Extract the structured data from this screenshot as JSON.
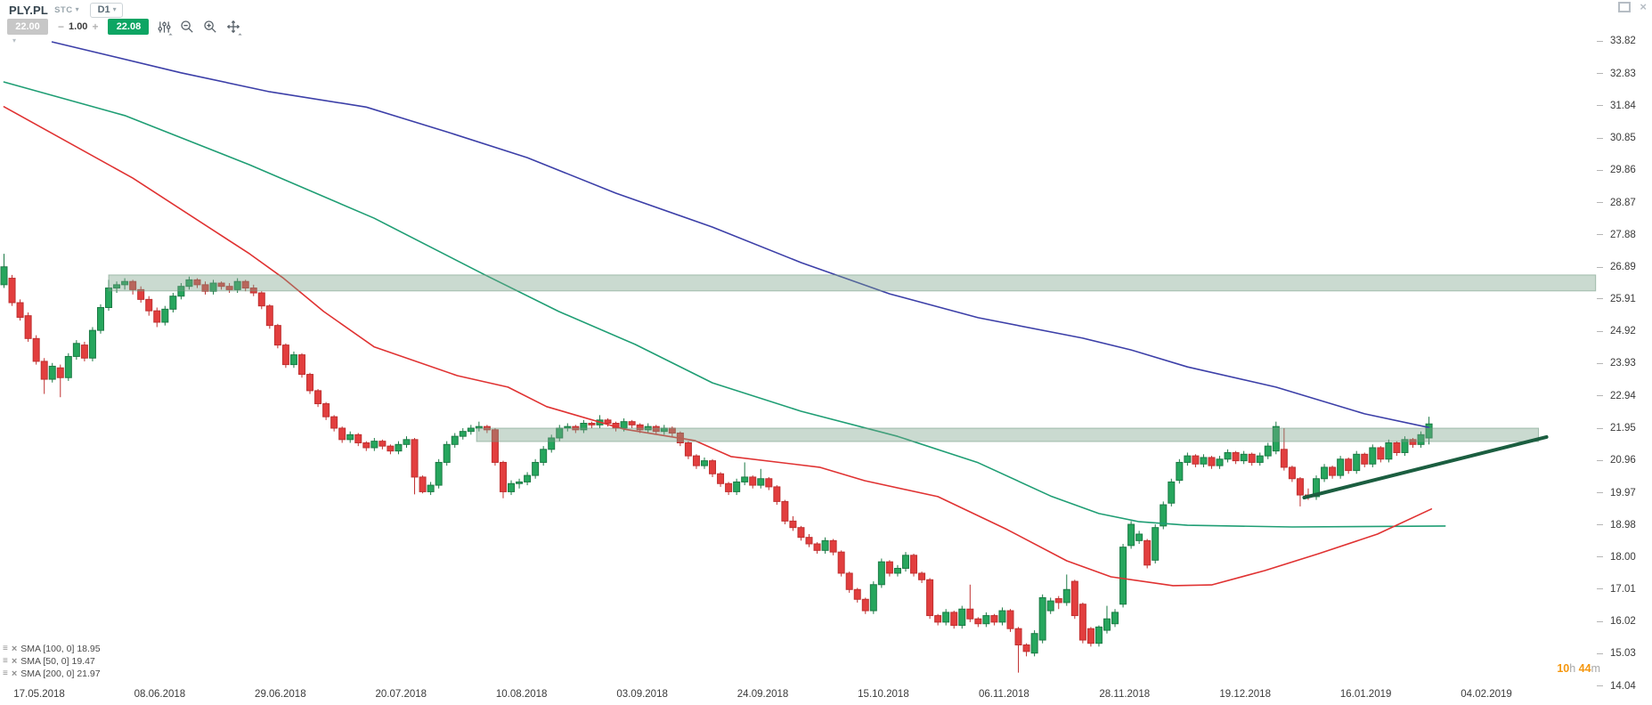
{
  "toolbar": {
    "symbol": "PLY.PL",
    "market": "STC",
    "timeframe": "D1",
    "sell_price": "22.00",
    "volume_decrement": "−",
    "volume": "1.00",
    "volume_increment": "+",
    "buy_price": "22.08"
  },
  "window_controls": {
    "restore_icon": "restore-window",
    "close_icon": "close-window"
  },
  "colors": {
    "sell_button": "#c7c7c7",
    "buy_button": "#0da563",
    "up_candle": "#26a65d",
    "up_candle_border": "#1c7a45",
    "down_candle": "#e23e3e",
    "down_candle_border": "#bf3030",
    "sma50": "#e03232",
    "sma100": "#1f9e74",
    "sma200": "#3c3fa8",
    "zone_fill": "rgba(122,162,138,0.40)",
    "zone_border": "rgba(110,150,126,0.55)",
    "trendline": "#1b5e40",
    "countdown_accent": "#f5970f"
  },
  "indicators": [
    {
      "name": "SMA",
      "params": "[100, 0]",
      "value": "18.95"
    },
    {
      "name": "SMA",
      "params": "[50, 0]",
      "value": "19.47"
    },
    {
      "name": "SMA",
      "params": "[200, 0]",
      "value": "21.97"
    }
  ],
  "countdown": {
    "hours": "10",
    "hours_unit": "h",
    "minutes": "44",
    "minutes_unit": "m"
  },
  "chart_data": {
    "type": "candlestick",
    "title": "PLY.PL D1 daily chart with SMA 50/100/200, resistance zones and rising trendline",
    "price_axis_labels": [
      33.82,
      32.83,
      31.84,
      30.85,
      29.86,
      28.87,
      27.88,
      26.89,
      25.91,
      24.92,
      23.93,
      22.94,
      21.95,
      20.96,
      19.97,
      18.98,
      18.0,
      17.01,
      16.02,
      15.03,
      14.04
    ],
    "date_axis_labels": [
      "17.05.2018",
      "08.06.2018",
      "29.06.2018",
      "20.07.2018",
      "10.08.2018",
      "03.09.2018",
      "24.09.2018",
      "15.10.2018",
      "06.11.2018",
      "28.11.2018",
      "19.12.2018",
      "16.01.2019",
      "04.02.2019"
    ],
    "candles": [
      [
        26.35,
        27.3,
        26.25,
        26.9
      ],
      [
        26.55,
        26.65,
        25.7,
        25.8
      ],
      [
        25.8,
        25.9,
        25.25,
        25.35
      ],
      [
        25.4,
        25.5,
        24.6,
        24.7
      ],
      [
        24.7,
        24.8,
        23.9,
        24
      ],
      [
        24,
        24.1,
        23,
        23.45
      ],
      [
        23.45,
        23.95,
        23.35,
        23.85
      ],
      [
        23.8,
        23.9,
        22.9,
        23.5
      ],
      [
        23.5,
        24.25,
        23.4,
        24.15
      ],
      [
        24.15,
        24.65,
        24.05,
        24.55
      ],
      [
        24.5,
        24.6,
        24,
        24.1
      ],
      [
        24.1,
        25.05,
        24,
        24.95
      ],
      [
        24.95,
        25.75,
        24.85,
        25.65
      ],
      [
        25.65,
        26.5,
        25.55,
        26.25
      ],
      [
        26.25,
        26.45,
        26.1,
        26.35
      ],
      [
        26.35,
        26.55,
        26.2,
        26.45
      ],
      [
        26.45,
        26.5,
        26.05,
        26.2
      ],
      [
        26.2,
        26.3,
        25.8,
        25.9
      ],
      [
        25.9,
        26,
        25.4,
        25.55
      ],
      [
        25.55,
        25.65,
        25.05,
        25.2
      ],
      [
        25.2,
        25.7,
        25.1,
        25.6
      ],
      [
        25.6,
        26.1,
        25.5,
        26
      ],
      [
        26,
        26.4,
        25.9,
        26.3
      ],
      [
        26.3,
        26.6,
        26.2,
        26.5
      ],
      [
        26.5,
        26.55,
        26.25,
        26.35
      ],
      [
        26.35,
        26.45,
        26.05,
        26.15
      ],
      [
        26.15,
        26.5,
        26.05,
        26.4
      ],
      [
        26.4,
        26.45,
        26.2,
        26.3
      ],
      [
        26.3,
        26.4,
        26.1,
        26.2
      ],
      [
        26.2,
        26.55,
        26.1,
        26.45
      ],
      [
        26.45,
        26.5,
        26.15,
        26.25
      ],
      [
        26.25,
        26.35,
        26,
        26.1
      ],
      [
        26.1,
        26.15,
        25.6,
        25.7
      ],
      [
        25.7,
        25.75,
        25,
        25.1
      ],
      [
        25.1,
        25.15,
        24.4,
        24.5
      ],
      [
        24.5,
        24.55,
        23.8,
        23.9
      ],
      [
        23.9,
        24.3,
        23.8,
        24.2
      ],
      [
        24.2,
        24.25,
        23.5,
        23.6
      ],
      [
        23.6,
        23.65,
        23,
        23.1
      ],
      [
        23.1,
        23.15,
        22.6,
        22.7
      ],
      [
        22.7,
        22.75,
        22.2,
        22.3
      ],
      [
        22.3,
        22.35,
        21.85,
        21.95
      ],
      [
        21.95,
        22,
        21.5,
        21.6
      ],
      [
        21.6,
        21.85,
        21.5,
        21.75
      ],
      [
        21.75,
        21.8,
        21.4,
        21.5
      ],
      [
        21.5,
        21.55,
        21.25,
        21.35
      ],
      [
        21.35,
        21.65,
        21.25,
        21.55
      ],
      [
        21.55,
        21.6,
        21.3,
        21.4
      ],
      [
        21.4,
        21.45,
        21.15,
        21.25
      ],
      [
        21.25,
        21.55,
        21.15,
        21.45
      ],
      [
        21.45,
        21.7,
        21.35,
        21.6
      ],
      [
        21.6,
        21.65,
        19.92,
        20.45
      ],
      [
        20.45,
        20.5,
        19.95,
        20
      ],
      [
        20,
        20.3,
        19.9,
        20.2
      ],
      [
        20.2,
        21,
        20.1,
        20.9
      ],
      [
        20.9,
        21.55,
        20.8,
        21.45
      ],
      [
        21.45,
        21.8,
        21.35,
        21.7
      ],
      [
        21.7,
        21.95,
        21.6,
        21.85
      ],
      [
        21.85,
        22.05,
        21.75,
        21.95
      ],
      [
        21.95,
        22.15,
        21.85,
        22
      ],
      [
        22,
        22.05,
        21.8,
        21.9
      ],
      [
        21.9,
        21.95,
        20.8,
        20.9
      ],
      [
        20.9,
        20.95,
        19.8,
        20
      ],
      [
        20,
        20.35,
        19.9,
        20.25
      ],
      [
        20.25,
        20.4,
        20.1,
        20.3
      ],
      [
        20.3,
        20.6,
        20.2,
        20.5
      ],
      [
        20.5,
        21,
        20.4,
        20.9
      ],
      [
        20.9,
        21.4,
        20.8,
        21.3
      ],
      [
        21.3,
        21.75,
        21.2,
        21.65
      ],
      [
        21.65,
        22.05,
        21.55,
        21.95
      ],
      [
        21.95,
        22.1,
        21.85,
        22
      ],
      [
        22,
        22.05,
        21.8,
        21.9
      ],
      [
        21.9,
        22.2,
        21.8,
        22.1
      ],
      [
        22.1,
        22.15,
        21.95,
        22.05
      ],
      [
        22.05,
        22.35,
        21.95,
        22.2
      ],
      [
        22.2,
        22.25,
        22,
        22.1
      ],
      [
        22.1,
        22.15,
        21.85,
        21.95
      ],
      [
        21.95,
        22.25,
        21.85,
        22.15
      ],
      [
        22.15,
        22.2,
        21.95,
        22.05
      ],
      [
        22.05,
        22.1,
        21.8,
        21.9
      ],
      [
        21.9,
        22.1,
        21.8,
        22
      ],
      [
        22,
        22.05,
        21.75,
        21.85
      ],
      [
        21.85,
        22.05,
        21.75,
        21.95
      ],
      [
        21.95,
        22,
        21.7,
        21.8
      ],
      [
        21.8,
        21.85,
        21.4,
        21.5
      ],
      [
        21.5,
        21.55,
        21,
        21.1
      ],
      [
        21.1,
        21.15,
        20.7,
        20.8
      ],
      [
        20.8,
        21.05,
        20.7,
        20.95
      ],
      [
        20.95,
        21,
        20.45,
        20.55
      ],
      [
        20.55,
        20.6,
        20.15,
        20.25
      ],
      [
        20.25,
        20.3,
        19.9,
        20
      ],
      [
        20,
        20.4,
        19.9,
        20.3
      ],
      [
        20.3,
        20.9,
        20.2,
        20.45
      ],
      [
        20.45,
        20.5,
        20.1,
        20.2
      ],
      [
        20.2,
        20.7,
        20.1,
        20.4
      ],
      [
        20.4,
        20.45,
        20.05,
        20.15
      ],
      [
        20.15,
        20.2,
        19.6,
        19.7
      ],
      [
        19.7,
        19.75,
        19,
        19.1
      ],
      [
        19.1,
        19.25,
        18.8,
        18.9
      ],
      [
        18.9,
        18.95,
        18.5,
        18.6
      ],
      [
        18.6,
        18.7,
        18.3,
        18.4
      ],
      [
        18.4,
        18.45,
        18.1,
        18.2
      ],
      [
        18.2,
        18.6,
        18.1,
        18.5
      ],
      [
        18.5,
        18.55,
        18.05,
        18.15
      ],
      [
        18.15,
        18.2,
        17.4,
        17.5
      ],
      [
        17.5,
        17.55,
        16.9,
        17
      ],
      [
        17,
        17.05,
        16.6,
        16.7
      ],
      [
        16.7,
        16.75,
        16.25,
        16.35
      ],
      [
        16.35,
        17.25,
        16.25,
        17.15
      ],
      [
        17.15,
        17.95,
        17.05,
        17.85
      ],
      [
        17.85,
        17.9,
        17.4,
        17.5
      ],
      [
        17.5,
        17.75,
        17.4,
        17.65
      ],
      [
        17.65,
        18.15,
        17.55,
        18.05
      ],
      [
        18.05,
        18.1,
        17.4,
        17.5
      ],
      [
        17.5,
        17.55,
        17.2,
        17.3
      ],
      [
        17.3,
        17.35,
        16.1,
        16.2
      ],
      [
        16.2,
        16.25,
        15.9,
        16
      ],
      [
        16,
        16.4,
        15.9,
        16.3
      ],
      [
        16.3,
        16.35,
        15.8,
        15.9
      ],
      [
        15.9,
        16.5,
        15.8,
        16.4
      ],
      [
        16.4,
        17.15,
        16,
        16.1
      ],
      [
        16.1,
        16.15,
        15.85,
        15.95
      ],
      [
        15.95,
        16.3,
        15.85,
        16.2
      ],
      [
        16.2,
        16.25,
        15.9,
        16
      ],
      [
        16,
        16.45,
        15.9,
        16.35
      ],
      [
        16.35,
        16.4,
        15.7,
        15.8
      ],
      [
        15.8,
        15.85,
        14.45,
        15.3
      ],
      [
        15.3,
        15.35,
        14.95,
        15.1
      ],
      [
        15.05,
        15.75,
        14.95,
        15.65
      ],
      [
        15.45,
        16.85,
        15.35,
        16.75
      ],
      [
        16.35,
        16.75,
        16.25,
        16.65
      ],
      [
        16.72,
        16.8,
        16.4,
        16.6
      ],
      [
        16.6,
        17.46,
        16.5,
        17
      ],
      [
        17.25,
        17.3,
        16.1,
        16.2
      ],
      [
        16.55,
        16.6,
        15.35,
        15.45
      ],
      [
        15.8,
        15.85,
        15.25,
        15.35
      ],
      [
        15.35,
        15.9,
        15.25,
        15.85
      ],
      [
        15.75,
        16.5,
        15.65,
        16.1
      ],
      [
        15.95,
        16.4,
        15.85,
        16.3
      ],
      [
        16.55,
        18.4,
        16.45,
        18.3
      ],
      [
        18.35,
        19.1,
        18.25,
        19
      ],
      [
        18.5,
        18.8,
        18.4,
        18.7
      ],
      [
        18.5,
        18.55,
        17.65,
        17.75
      ],
      [
        17.9,
        19,
        17.8,
        18.9
      ],
      [
        18.95,
        19.7,
        18.85,
        19.6
      ],
      [
        19.65,
        20.4,
        19.55,
        20.3
      ],
      [
        20.35,
        21,
        20.25,
        20.9
      ],
      [
        20.9,
        21.2,
        20.8,
        21.1
      ],
      [
        21.1,
        21.15,
        20.75,
        20.85
      ],
      [
        20.85,
        21.15,
        20.75,
        21.05
      ],
      [
        21.05,
        21.1,
        20.7,
        20.8
      ],
      [
        20.8,
        21.1,
        20.7,
        21
      ],
      [
        21,
        21.3,
        20.9,
        21.2
      ],
      [
        21.2,
        21.25,
        20.85,
        20.95
      ],
      [
        20.95,
        21.25,
        20.85,
        21.15
      ],
      [
        21.15,
        21.2,
        20.8,
        20.9
      ],
      [
        20.9,
        21.2,
        20.8,
        21.1
      ],
      [
        21.1,
        21.5,
        21,
        21.4
      ],
      [
        21.25,
        22.15,
        21.15,
        22
      ],
      [
        21.3,
        21.95,
        20.65,
        20.75
      ],
      [
        20.75,
        20.8,
        20.3,
        20.4
      ],
      [
        20.4,
        20.45,
        19.55,
        19.9
      ],
      [
        19.9,
        20.1,
        19.75,
        19.85
      ],
      [
        19.85,
        20.5,
        19.75,
        20.4
      ],
      [
        20.4,
        20.85,
        20.3,
        20.75
      ],
      [
        20.75,
        20.8,
        20.4,
        20.5
      ],
      [
        20.5,
        21.1,
        20.4,
        21
      ],
      [
        21,
        21.05,
        20.55,
        20.65
      ],
      [
        20.65,
        21.25,
        20.55,
        21.15
      ],
      [
        21.15,
        21.2,
        20.75,
        20.85
      ],
      [
        20.85,
        21.45,
        20.75,
        21.35
      ],
      [
        21.35,
        21.4,
        20.9,
        21
      ],
      [
        21,
        21.6,
        20.9,
        21.5
      ],
      [
        21.5,
        21.55,
        21.1,
        21.2
      ],
      [
        21.2,
        21.7,
        21.1,
        21.6
      ],
      [
        21.6,
        21.65,
        21.35,
        21.45
      ],
      [
        21.45,
        21.85,
        21.35,
        21.75
      ],
      [
        21.65,
        22.3,
        21.45,
        22.08
      ]
    ],
    "sma_series": [
      {
        "name": "SMA 200",
        "color_key": "sma200",
        "points": [
          [
            6,
            33.8
          ],
          [
            22,
            32.85
          ],
          [
            33,
            32.27
          ],
          [
            45,
            31.8
          ],
          [
            55,
            31.04
          ],
          [
            65,
            30.25
          ],
          [
            76,
            29.16
          ],
          [
            88,
            28.12
          ],
          [
            99,
            27.03
          ],
          [
            110,
            26.07
          ],
          [
            121,
            25.34
          ],
          [
            134,
            24.71
          ],
          [
            140,
            24.35
          ],
          [
            147,
            23.83
          ],
          [
            158,
            23.21
          ],
          [
            169,
            22.39
          ],
          [
            177,
            21.97
          ]
        ]
      },
      {
        "name": "SMA 100",
        "color_key": "sma100",
        "points": [
          [
            0,
            32.57
          ],
          [
            15,
            31.54
          ],
          [
            30.5,
            30.03
          ],
          [
            46,
            28.39
          ],
          [
            59.6,
            26.67
          ],
          [
            68.9,
            25.53
          ],
          [
            78.4,
            24.52
          ],
          [
            88,
            23.34
          ],
          [
            99,
            22.47
          ],
          [
            111,
            21.7
          ],
          [
            121,
            20.89
          ],
          [
            130,
            19.87
          ],
          [
            136,
            19.33
          ],
          [
            141,
            19.08
          ],
          [
            147,
            18.97
          ],
          [
            160,
            18.92
          ],
          [
            179,
            18.95
          ]
        ]
      },
      {
        "name": "SMA 50",
        "color_key": "sma50",
        "points": [
          [
            0,
            31.81
          ],
          [
            16,
            29.62
          ],
          [
            30.5,
            27.3
          ],
          [
            34.6,
            26.57
          ],
          [
            39.7,
            25.53
          ],
          [
            46,
            24.44
          ],
          [
            56.3,
            23.56
          ],
          [
            62.6,
            23.21
          ],
          [
            67.4,
            22.61
          ],
          [
            77,
            21.92
          ],
          [
            85.8,
            21.57
          ],
          [
            90.3,
            21.08
          ],
          [
            101.3,
            20.75
          ],
          [
            106.9,
            20.34
          ],
          [
            116,
            19.85
          ],
          [
            124.6,
            18.84
          ],
          [
            132,
            17.88
          ],
          [
            137.5,
            17.39
          ],
          [
            145.2,
            17.12
          ],
          [
            150,
            17.14
          ],
          [
            156.6,
            17.58
          ],
          [
            163.3,
            18.1
          ],
          [
            170.6,
            18.7
          ],
          [
            177.3,
            19.47
          ]
        ]
      }
    ],
    "resistance_zones": [
      {
        "from_bar": 13,
        "to_bar": 197.7,
        "top_price": 26.65,
        "bottom_price": 26.16
      },
      {
        "from_bar": 58.7,
        "to_bar": 190.6,
        "top_price": 21.95,
        "bottom_price": 21.54
      }
    ],
    "trendline": {
      "from_bar": 161.5,
      "from_price": 19.82,
      "to_bar": 191.6,
      "to_price": 21.68
    }
  }
}
